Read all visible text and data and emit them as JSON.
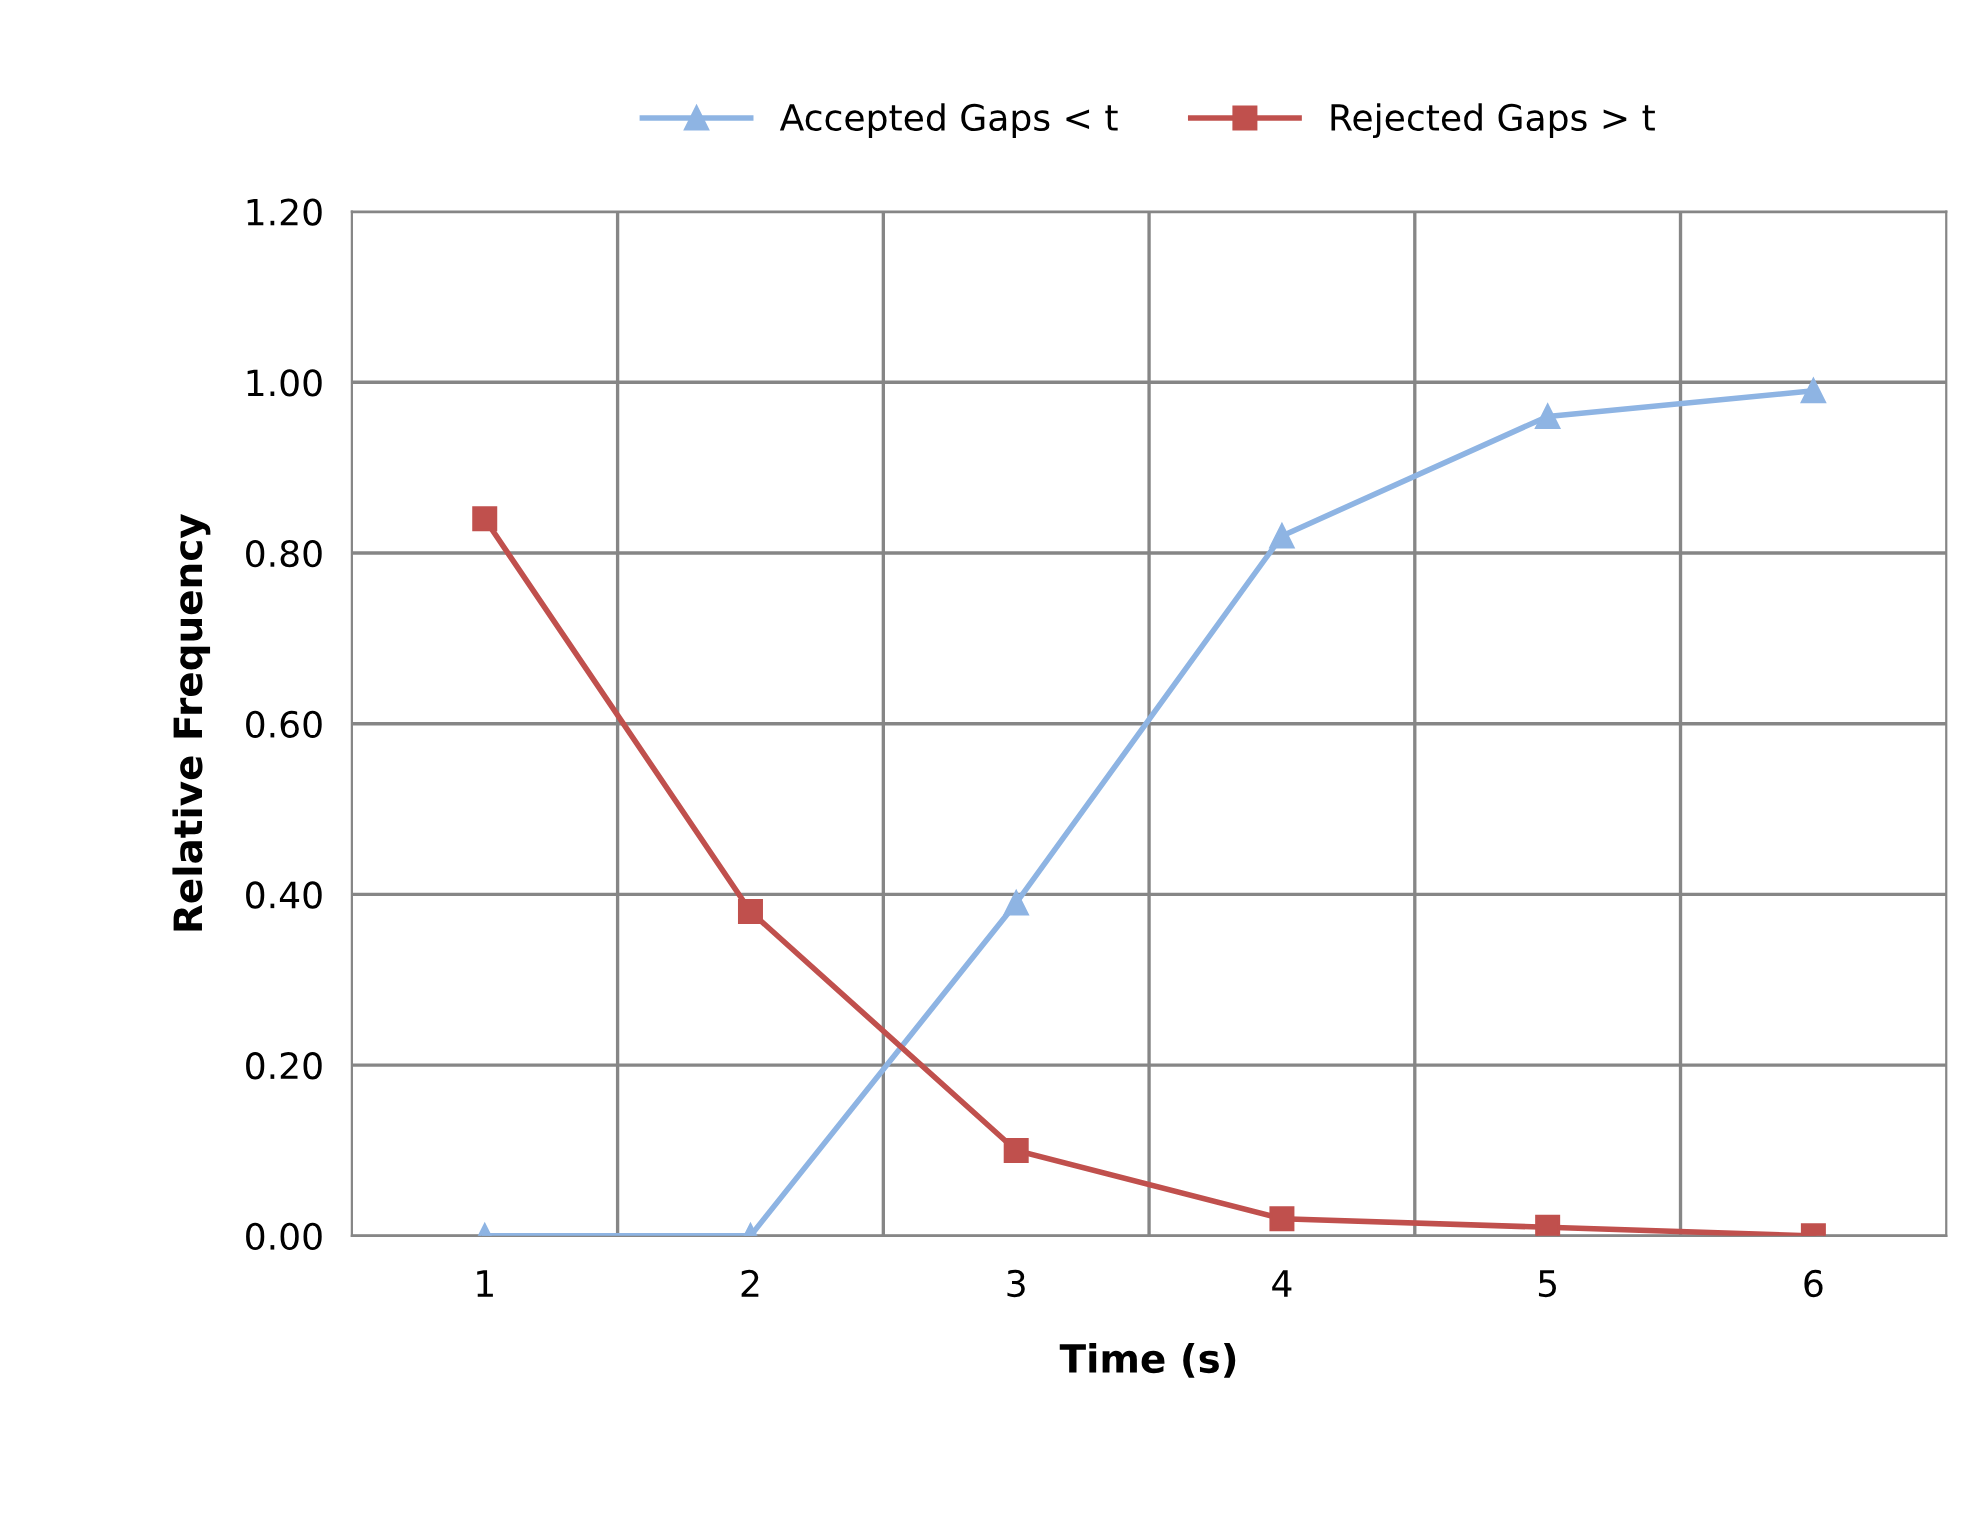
{
  "chart_data": {
    "type": "line",
    "xlabel": "Time (s)",
    "ylabel": "Relative Frequency",
    "categories": [
      "1",
      "2",
      "3",
      "4",
      "5",
      "6"
    ],
    "series": [
      {
        "name": "Accepted Gaps < t",
        "color": "#8eb4e3",
        "marker": "triangle",
        "values": [
          0.0,
          0.0,
          0.39,
          0.82,
          0.96,
          0.99
        ]
      },
      {
        "name": "Rejected Gaps > t",
        "color": "#c0504d",
        "marker": "square",
        "values": [
          0.84,
          0.38,
          0.1,
          0.02,
          0.01,
          0.0
        ]
      }
    ],
    "ylim": [
      0,
      1.2
    ],
    "yticks": [
      {
        "value": 0,
        "label": "0.00"
      },
      {
        "value": 0.2,
        "label": "0.20"
      },
      {
        "value": 0.4,
        "label": "0.40"
      },
      {
        "value": 0.6,
        "label": "0.60"
      },
      {
        "value": 0.8,
        "label": "0.80"
      },
      {
        "value": 1.0,
        "label": "1.00"
      },
      {
        "value": 1.2,
        "label": "1.20"
      }
    ],
    "grid": true,
    "legend": "top",
    "line_style": "solid"
  }
}
